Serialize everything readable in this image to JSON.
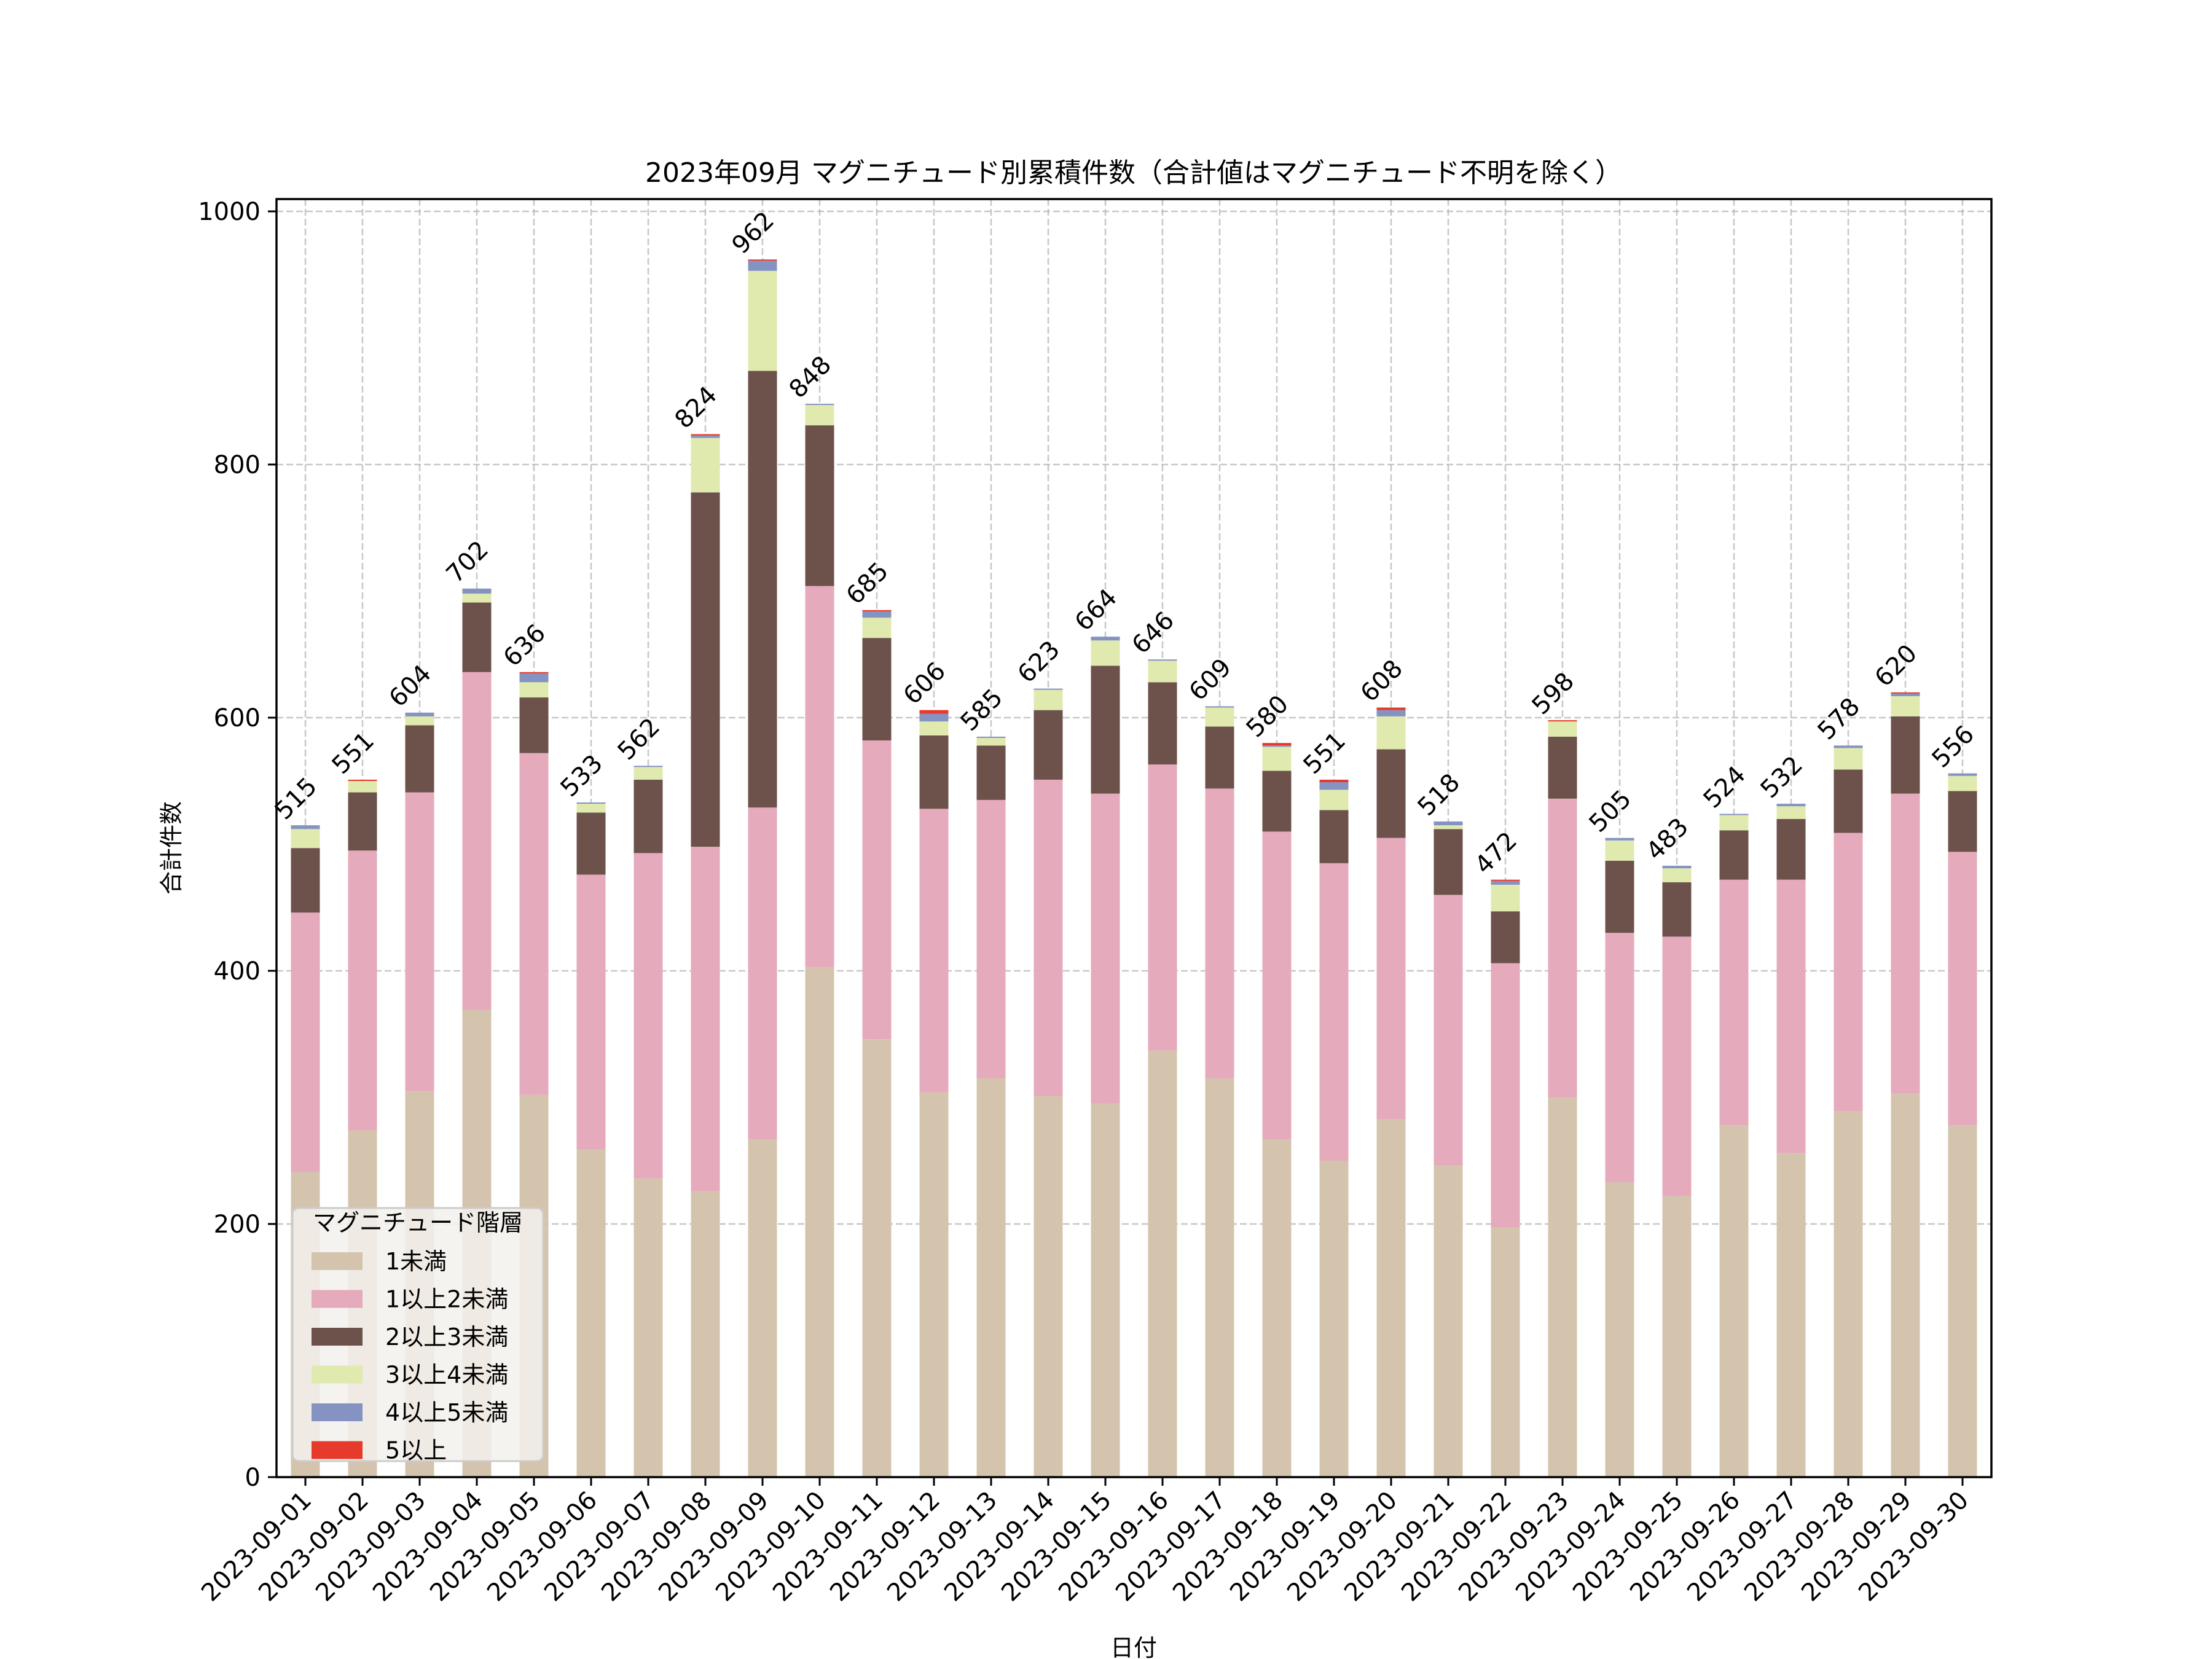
{
  "chart_data": {
    "type": "bar",
    "stacked": true,
    "title": "2023年09月 マグニチュード別累積件数（合計値はマグニチュード不明を除く）",
    "xlabel": "日付",
    "ylabel": "合計件数",
    "ylim": [
      0,
      1010
    ],
    "yticks": [
      0,
      200,
      400,
      600,
      800,
      1000
    ],
    "grid": true,
    "legend": {
      "title": "マグニチュード階層",
      "placement": "lower-left"
    },
    "categories": [
      "2023-09-01",
      "2023-09-02",
      "2023-09-03",
      "2023-09-04",
      "2023-09-05",
      "2023-09-06",
      "2023-09-07",
      "2023-09-08",
      "2023-09-09",
      "2023-09-10",
      "2023-09-11",
      "2023-09-12",
      "2023-09-13",
      "2023-09-14",
      "2023-09-15",
      "2023-09-16",
      "2023-09-17",
      "2023-09-18",
      "2023-09-19",
      "2023-09-20",
      "2023-09-21",
      "2023-09-22",
      "2023-09-23",
      "2023-09-24",
      "2023-09-25",
      "2023-09-26",
      "2023-09-27",
      "2023-09-28",
      "2023-09-29",
      "2023-09-30"
    ],
    "series": [
      {
        "name": "1未満",
        "color": "#d4c4ae",
        "values": [
          241,
          274,
          305,
          369,
          302,
          259,
          236,
          226,
          267,
          403,
          346,
          304,
          315,
          301,
          295,
          337,
          315,
          267,
          250,
          283,
          246,
          197,
          300,
          233,
          222,
          278,
          256,
          289,
          303,
          278
        ]
      },
      {
        "name": "1以上2未満",
        "color": "#e5aabb",
        "values": [
          205,
          221,
          236,
          267,
          270,
          217,
          257,
          272,
          262,
          301,
          236,
          224,
          220,
          250,
          245,
          226,
          229,
          243,
          235,
          222,
          214,
          209,
          236,
          197,
          205,
          194,
          216,
          220,
          237,
          216
        ]
      },
      {
        "name": "2以上3未満",
        "color": "#6d524b",
        "values": [
          51,
          46,
          53,
          55,
          44,
          49,
          58,
          280,
          345,
          127,
          81,
          58,
          43,
          55,
          101,
          65,
          49,
          48,
          42,
          70,
          52,
          41,
          49,
          57,
          43,
          39,
          48,
          50,
          61,
          48
        ]
      },
      {
        "name": "3以上4未満",
        "color": "#e0eaae",
        "values": [
          15,
          9,
          7,
          7,
          12,
          7,
          10,
          43,
          79,
          16,
          16,
          11,
          6,
          16,
          20,
          17,
          15,
          19,
          16,
          26,
          3,
          21,
          12,
          16,
          11,
          12,
          10,
          17,
          16,
          12
        ]
      },
      {
        "name": "4以上5未満",
        "color": "#8593c2",
        "values": [
          3,
          0,
          3,
          4,
          7,
          1,
          1,
          2,
          8,
          1,
          5,
          6,
          1,
          1,
          3,
          1,
          1,
          1,
          6,
          5,
          3,
          3,
          0,
          2,
          2,
          1,
          2,
          2,
          2,
          2
        ]
      },
      {
        "name": "5以上",
        "color": "#e63a2a",
        "values": [
          0,
          1,
          0,
          0,
          1,
          0,
          0,
          1,
          1,
          0,
          1,
          3,
          0,
          0,
          0,
          0,
          0,
          2,
          2,
          2,
          0,
          1,
          1,
          0,
          0,
          0,
          0,
          0,
          1,
          0
        ]
      }
    ],
    "totals": [
      515,
      551,
      604,
      702,
      636,
      533,
      562,
      824,
      962,
      848,
      685,
      606,
      585,
      623,
      664,
      646,
      609,
      580,
      551,
      608,
      518,
      472,
      598,
      505,
      483,
      524,
      532,
      578,
      620,
      556
    ]
  }
}
